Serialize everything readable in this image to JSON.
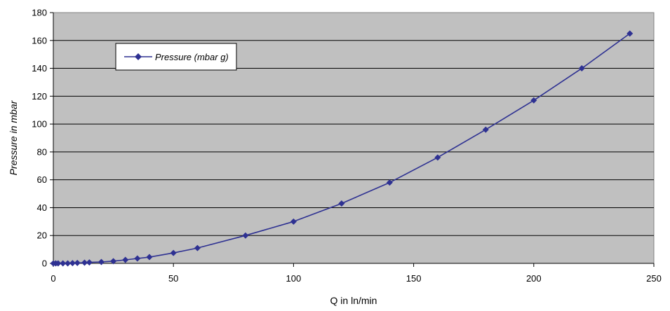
{
  "chart_data": {
    "type": "line",
    "title": "",
    "xlabel": "Q in ln/min",
    "ylabel": "Pressure in mbar",
    "xlim": [
      0,
      250
    ],
    "ylim": [
      0,
      180
    ],
    "xticks": [
      0,
      50,
      100,
      150,
      200,
      250
    ],
    "yticks": [
      0,
      20,
      40,
      60,
      80,
      100,
      120,
      140,
      160,
      180
    ],
    "grid": "horizontal",
    "legend": "top-left",
    "plot_background": "#c0c0c0",
    "series": [
      {
        "name": "Pressure (mbar g)",
        "color": "#2e3192",
        "marker": "diamond",
        "x": [
          0,
          1,
          2,
          4,
          6,
          8,
          10,
          13,
          15,
          20,
          25,
          30,
          35,
          40,
          50,
          60,
          80,
          100,
          120,
          140,
          160,
          180,
          200,
          220,
          240
        ],
        "y": [
          0,
          0,
          0,
          0,
          0,
          0.2,
          0.3,
          0.5,
          0.7,
          1,
          1.6,
          2.5,
          3.5,
          4.5,
          7.5,
          11,
          20,
          30,
          43,
          58,
          76,
          96,
          117,
          140,
          165
        ]
      }
    ]
  }
}
